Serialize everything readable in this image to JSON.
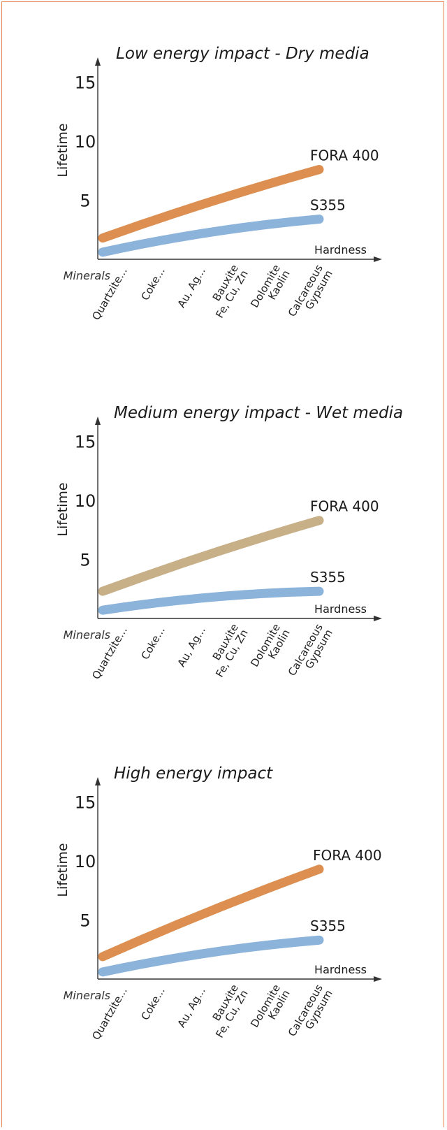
{
  "chart_data": [
    {
      "type": "line",
      "title": "Low energy impact - Dry media",
      "ylabel": "Lifetime",
      "xlabel": "Hardness",
      "category_axis_label": "Minerals",
      "yticks": [
        5,
        10,
        15
      ],
      "ylim": [
        0,
        18
      ],
      "categories": [
        [
          "Quartzite..."
        ],
        [
          "Coke..."
        ],
        [
          "Au, Ag..."
        ],
        [
          "Bauxite",
          "Fe, Cu, Zn"
        ],
        [
          "Dolomite",
          "Kaolin"
        ],
        [
          "Calcareous",
          "Gypsum"
        ]
      ],
      "series": [
        {
          "name": "FORA 400",
          "color": "#dc8f50",
          "x": [
            0,
            5.4
          ],
          "y": [
            1.8,
            7.6
          ]
        },
        {
          "name": "S355",
          "color": "#8cb3da",
          "x": [
            0,
            5.4
          ],
          "y": [
            0.6,
            3.4
          ]
        }
      ]
    },
    {
      "type": "line",
      "title": "Medium energy impact - Wet media",
      "ylabel": "Lifetime",
      "xlabel": "Hardness",
      "category_axis_label": "Minerals",
      "yticks": [
        5,
        10,
        15
      ],
      "ylim": [
        0,
        18
      ],
      "categories": [
        [
          "Quartzite..."
        ],
        [
          "Coke..."
        ],
        [
          "Au, Ag..."
        ],
        [
          "Bauxite",
          "Fe, Cu, Zn"
        ],
        [
          "Dolomite",
          "Kaolin"
        ],
        [
          "Calcareous",
          "Gypsum"
        ]
      ],
      "series": [
        {
          "name": "FORA 400",
          "color": "#c7b088",
          "x": [
            0,
            5.4
          ],
          "y": [
            2.3,
            8.3
          ]
        },
        {
          "name": "S355",
          "color": "#8cb3da",
          "x": [
            0,
            5.4
          ],
          "y": [
            0.7,
            2.3
          ]
        }
      ]
    },
    {
      "type": "line",
      "title": "High energy impact",
      "ylabel": "Lifetime",
      "xlabel": "Hardness",
      "category_axis_label": "Minerals",
      "yticks": [
        5,
        10,
        15
      ],
      "ylim": [
        0,
        18
      ],
      "categories": [
        [
          "Quartzite..."
        ],
        [
          "Coke..."
        ],
        [
          "Au, Ag..."
        ],
        [
          "Bauxite",
          "Fe, Cu, Zn"
        ],
        [
          "Dolomite",
          "Kaolin"
        ],
        [
          "Calcareous",
          "Gypsum"
        ]
      ],
      "series": [
        {
          "name": "FORA 400",
          "color": "#dc8f50",
          "x": [
            0,
            5.4
          ],
          "y": [
            1.9,
            9.3
          ]
        },
        {
          "name": "S355",
          "color": "#8cb3da",
          "x": [
            0,
            5.4
          ],
          "y": [
            0.6,
            3.3
          ]
        }
      ]
    }
  ]
}
